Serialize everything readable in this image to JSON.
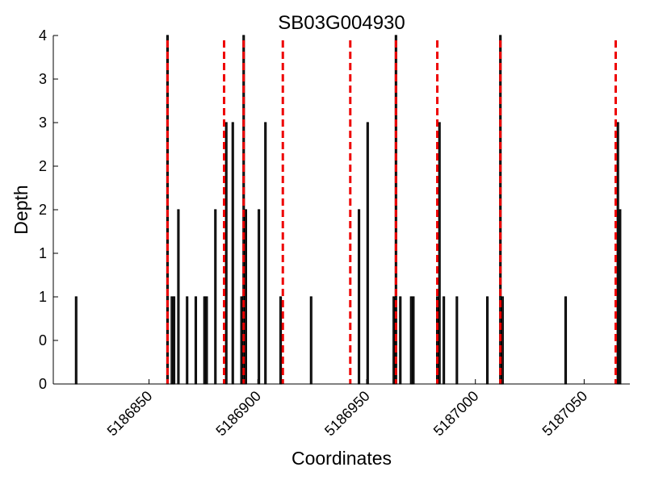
{
  "chart_data": {
    "type": "bar",
    "title": "SB03G004930",
    "xlabel": "Coordinates",
    "ylabel": "Depth",
    "xlim": [
      5186806,
      5187071
    ],
    "ylim": [
      0,
      4
    ],
    "x_ticks": [
      5186850,
      5186900,
      5186950,
      5187000,
      5187050
    ],
    "x_tick_labels": [
      "5186850",
      "5186900",
      "5186950",
      "5187000",
      "5187050"
    ],
    "y_ticks": [
      0,
      0.5,
      1,
      1.5,
      2,
      2.5,
      3,
      3.5,
      4
    ],
    "y_tick_labels": [
      "0",
      "0",
      "1",
      "1",
      "2",
      "2",
      "3",
      "3",
      "4"
    ],
    "grid": false,
    "bars": [
      {
        "x": 5186816,
        "depth": 1
      },
      {
        "x": 5186858,
        "depth": 4
      },
      {
        "x": 5186860,
        "depth": 1
      },
      {
        "x": 5186861,
        "depth": 1
      },
      {
        "x": 5186863,
        "depth": 2
      },
      {
        "x": 5186867,
        "depth": 1
      },
      {
        "x": 5186871,
        "depth": 1
      },
      {
        "x": 5186875,
        "depth": 1
      },
      {
        "x": 5186876,
        "depth": 1
      },
      {
        "x": 5186880,
        "depth": 2
      },
      {
        "x": 5186885,
        "depth": 3
      },
      {
        "x": 5186888,
        "depth": 3
      },
      {
        "x": 5186892,
        "depth": 1
      },
      {
        "x": 5186893,
        "depth": 4
      },
      {
        "x": 5186894,
        "depth": 2
      },
      {
        "x": 5186900,
        "depth": 2
      },
      {
        "x": 5186903,
        "depth": 3
      },
      {
        "x": 5186910,
        "depth": 1
      },
      {
        "x": 5186924,
        "depth": 1
      },
      {
        "x": 5186946,
        "depth": 2
      },
      {
        "x": 5186950,
        "depth": 3
      },
      {
        "x": 5186962,
        "depth": 1
      },
      {
        "x": 5186963,
        "depth": 4
      },
      {
        "x": 5186965,
        "depth": 1
      },
      {
        "x": 5186970,
        "depth": 1
      },
      {
        "x": 5186971,
        "depth": 1
      },
      {
        "x": 5186982,
        "depth": 1
      },
      {
        "x": 5186983,
        "depth": 3
      },
      {
        "x": 5186985,
        "depth": 1
      },
      {
        "x": 5186991,
        "depth": 1
      },
      {
        "x": 5187005,
        "depth": 1
      },
      {
        "x": 5187011,
        "depth": 4
      },
      {
        "x": 5187012,
        "depth": 1
      },
      {
        "x": 5187041,
        "depth": 1
      },
      {
        "x": 5187065,
        "depth": 3
      },
      {
        "x": 5187066,
        "depth": 2
      }
    ],
    "markers": [
      5186858,
      5186884,
      5186893,
      5186911,
      5186942,
      5186963,
      5186982,
      5187011,
      5187064
    ],
    "bar_color": "#000000",
    "bar_fill": "#333333",
    "marker_color": "#ee0000",
    "marker_style": "dashed"
  }
}
